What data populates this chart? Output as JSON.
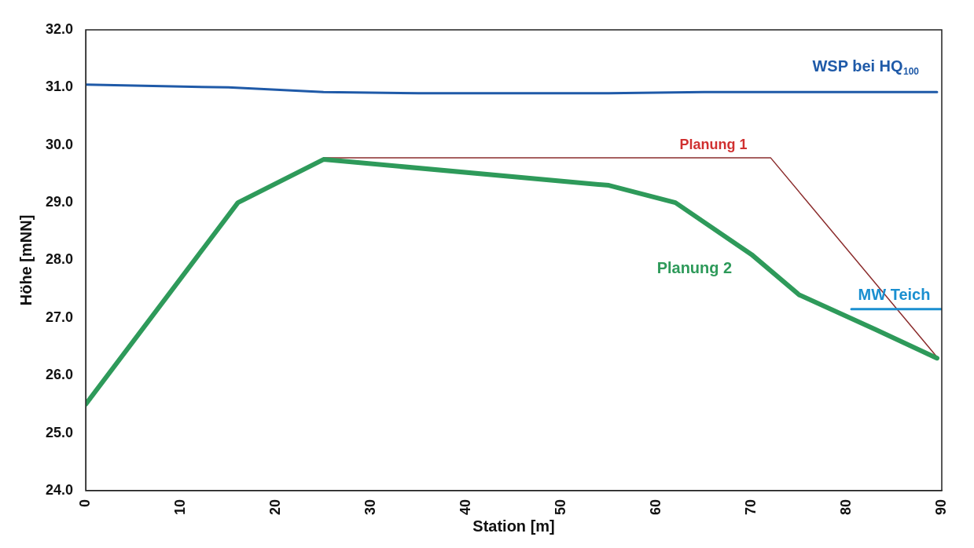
{
  "chart_data": {
    "type": "line",
    "xlabel": "Station [m]",
    "ylabel": "Höhe [mNN]",
    "xlim": [
      0,
      90
    ],
    "xticks": [
      0,
      10,
      20,
      30,
      40,
      50,
      60,
      70,
      80,
      90
    ],
    "ylim": [
      24,
      32
    ],
    "yticks": [
      {
        "value": 24,
        "label": "24.0"
      },
      {
        "value": 25,
        "label": "25.0"
      },
      {
        "value": 26,
        "label": "26.0"
      },
      {
        "value": 27,
        "label": "27.0"
      },
      {
        "value": 28,
        "label": "28.0"
      },
      {
        "value": 29,
        "label": "29.0"
      },
      {
        "value": 30,
        "label": "30.0"
      },
      {
        "value": 31,
        "label": "31.0"
      },
      {
        "value": 32,
        "label": "32.0"
      }
    ],
    "grid": false,
    "legend": false,
    "marker": "none",
    "line_style": "solid",
    "series": [
      {
        "name": "WSP bei HQ$_{100}$",
        "color": "#1f5aa8",
        "x": [
          0,
          15,
          25,
          35,
          45,
          55,
          65,
          75,
          89.5
        ],
        "values": [
          31.05,
          31.0,
          30.92,
          30.9,
          30.9,
          30.9,
          30.92,
          30.92,
          30.92
        ]
      },
      {
        "name": "Planung 1",
        "color": "#8b2c2c",
        "x": [
          25,
          72,
          89.5
        ],
        "values": [
          29.78,
          29.78,
          26.32
        ]
      },
      {
        "name": "Planung 2",
        "color": "#2e9a5a",
        "x": [
          0,
          16,
          25,
          55,
          62,
          70,
          75,
          83,
          89.5
        ],
        "values": [
          25.5,
          29.0,
          29.75,
          29.3,
          29.0,
          28.1,
          27.4,
          26.8,
          26.3
        ]
      },
      {
        "name": "MW Teich",
        "color": "#1a8fd0",
        "x": [
          80.5,
          90
        ],
        "values": [
          27.15,
          27.15
        ]
      }
    ]
  }
}
